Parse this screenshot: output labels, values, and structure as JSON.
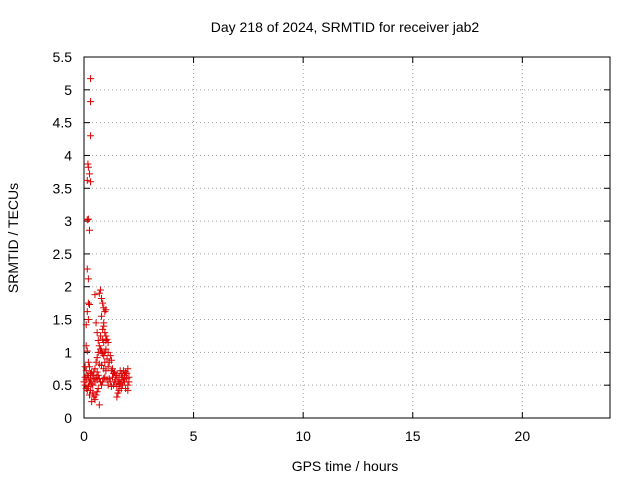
{
  "chart_data": {
    "type": "scatter",
    "title": "Day 218 of 2024, SRMTID for receiver jab2",
    "xlabel": "GPS time / hours",
    "ylabel": "SRMTID / TECUs",
    "xlim": [
      0,
      24
    ],
    "ylim": [
      0,
      5.5
    ],
    "xticks": [
      0,
      5,
      10,
      15,
      20
    ],
    "xtick_labels": [
      "0",
      "5",
      "10",
      "15",
      "20"
    ],
    "yticks": [
      0,
      0.5,
      1,
      1.5,
      2,
      2.5,
      3,
      3.5,
      4,
      4.5,
      5,
      5.5
    ],
    "ytick_labels": [
      "0",
      "0.5",
      "1",
      "1.5",
      "2",
      "2.5",
      "3",
      "3.5",
      "4",
      "4.5",
      "5",
      "5.5"
    ],
    "grid": true,
    "marker": "plus",
    "color": "#dd0000",
    "series": [
      {
        "name": "SRMTID",
        "points": [
          [
            0.3,
            5.17
          ],
          [
            0.3,
            4.82
          ],
          [
            0.3,
            4.3
          ],
          [
            0.18,
            3.87
          ],
          [
            0.2,
            3.82
          ],
          [
            0.25,
            3.72
          ],
          [
            0.15,
            3.62
          ],
          [
            0.3,
            3.6
          ],
          [
            0.15,
            3.02
          ],
          [
            0.2,
            3.03
          ],
          [
            0.25,
            2.86
          ],
          [
            0.15,
            2.27
          ],
          [
            0.2,
            2.12
          ],
          [
            0.2,
            1.75
          ],
          [
            0.25,
            1.73
          ],
          [
            0.15,
            1.62
          ],
          [
            0.2,
            1.5
          ],
          [
            0.1,
            1.42
          ],
          [
            0.5,
            1.88
          ],
          [
            0.7,
            1.9
          ],
          [
            0.75,
            1.95
          ],
          [
            0.8,
            1.82
          ],
          [
            0.85,
            1.75
          ],
          [
            0.9,
            1.68
          ],
          [
            0.95,
            1.62
          ],
          [
            1.0,
            1.65
          ],
          [
            0.8,
            1.55
          ],
          [
            0.9,
            1.45
          ],
          [
            0.85,
            1.35
          ],
          [
            0.9,
            1.4
          ],
          [
            0.55,
            1.45
          ],
          [
            0.6,
            1.3
          ],
          [
            1.0,
            1.25
          ],
          [
            1.05,
            1.2
          ],
          [
            1.1,
            1.15
          ],
          [
            0.65,
            1.18
          ],
          [
            0.7,
            1.1
          ],
          [
            0.75,
            1.05
          ],
          [
            0.8,
            1.02
          ],
          [
            0.85,
            0.98
          ],
          [
            0.9,
            0.95
          ],
          [
            0.95,
            1.0
          ],
          [
            1.0,
            1.05
          ],
          [
            1.1,
            1.0
          ],
          [
            1.2,
            0.95
          ],
          [
            1.25,
            0.88
          ],
          [
            0.6,
            0.92
          ],
          [
            0.55,
            0.85
          ],
          [
            0.7,
            0.82
          ],
          [
            0.8,
            0.8
          ],
          [
            0.9,
            0.75
          ],
          [
            1.0,
            0.72
          ],
          [
            1.1,
            0.78
          ],
          [
            1.3,
            0.75
          ],
          [
            1.4,
            0.7
          ],
          [
            1.5,
            0.65
          ],
          [
            1.6,
            0.62
          ],
          [
            1.7,
            0.68
          ],
          [
            1.8,
            0.72
          ],
          [
            1.9,
            0.7
          ],
          [
            2.0,
            0.75
          ],
          [
            1.45,
            0.58
          ],
          [
            1.55,
            0.55
          ],
          [
            1.65,
            0.52
          ],
          [
            1.75,
            0.5
          ],
          [
            1.85,
            0.55
          ],
          [
            1.95,
            0.6
          ],
          [
            2.0,
            0.5
          ],
          [
            1.6,
            0.42
          ],
          [
            1.7,
            0.45
          ],
          [
            1.5,
            0.32
          ],
          [
            1.55,
            0.38
          ],
          [
            1.9,
            0.45
          ],
          [
            2.0,
            0.42
          ],
          [
            0.1,
            1.1
          ],
          [
            0.15,
            1.02
          ],
          [
            0.05,
            0.78
          ],
          [
            0.1,
            0.72
          ],
          [
            0.15,
            0.65
          ],
          [
            0.2,
            0.62
          ],
          [
            0.25,
            0.55
          ],
          [
            0.05,
            0.5
          ],
          [
            0.1,
            0.45
          ],
          [
            0.15,
            0.42
          ],
          [
            0.2,
            0.48
          ],
          [
            0.3,
            0.58
          ],
          [
            0.35,
            0.52
          ],
          [
            0.4,
            0.5
          ],
          [
            0.45,
            0.6
          ],
          [
            0.5,
            0.55
          ],
          [
            0.55,
            0.62
          ],
          [
            0.6,
            0.58
          ],
          [
            0.65,
            0.65
          ],
          [
            0.7,
            0.6
          ],
          [
            0.75,
            0.55
          ],
          [
            0.8,
            0.5
          ],
          [
            0.85,
            0.55
          ],
          [
            0.9,
            0.6
          ],
          [
            0.95,
            0.62
          ],
          [
            1.05,
            0.58
          ],
          [
            1.15,
            0.6
          ],
          [
            1.2,
            0.55
          ],
          [
            0.4,
            0.38
          ],
          [
            0.45,
            0.32
          ],
          [
            0.5,
            0.28
          ],
          [
            0.55,
            0.35
          ],
          [
            0.6,
            0.4
          ],
          [
            0.65,
            0.45
          ],
          [
            0.7,
            0.2
          ],
          [
            0.35,
            0.25
          ],
          [
            0.3,
            0.42
          ],
          [
            0.25,
            0.35
          ],
          [
            1.3,
            0.62
          ],
          [
            1.35,
            0.68
          ],
          [
            1.4,
            0.55
          ],
          [
            1.25,
            0.72
          ],
          [
            1.15,
            0.85
          ],
          [
            1.05,
            0.9
          ],
          [
            0.95,
            0.85
          ],
          [
            0.9,
            1.15
          ],
          [
            1.0,
            1.18
          ],
          [
            0.95,
            1.3
          ],
          [
            0.85,
            1.2
          ],
          [
            0.75,
            1.25
          ],
          [
            0.65,
            1.0
          ],
          [
            0.6,
            0.7
          ],
          [
            0.5,
            0.75
          ],
          [
            0.45,
            0.7
          ],
          [
            0.4,
            0.65
          ],
          [
            0.35,
            0.7
          ],
          [
            1.65,
            0.72
          ],
          [
            1.75,
            0.62
          ],
          [
            1.85,
            0.65
          ],
          [
            1.95,
            0.68
          ],
          [
            2.05,
            0.62
          ],
          [
            2.05,
            0.55
          ],
          [
            1.8,
            0.58
          ],
          [
            1.7,
            0.58
          ],
          [
            1.6,
            0.52
          ],
          [
            1.5,
            0.48
          ],
          [
            1.45,
            0.65
          ],
          [
            1.35,
            0.5
          ],
          [
            1.25,
            0.48
          ],
          [
            1.1,
            0.5
          ],
          [
            0.3,
            0.68
          ],
          [
            0.25,
            0.78
          ],
          [
            0.2,
            0.85
          ],
          [
            0.1,
            0.58
          ],
          [
            0.05,
            0.62
          ],
          [
            0.0,
            0.55
          ]
        ]
      }
    ]
  }
}
